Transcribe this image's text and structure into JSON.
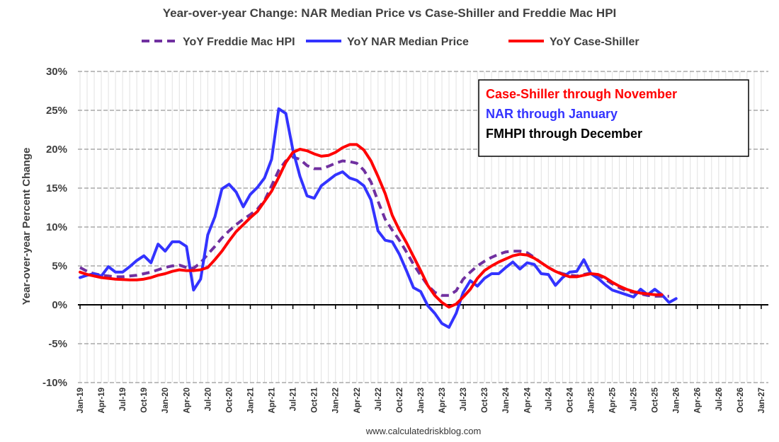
{
  "chart_data": {
    "type": "line",
    "title": "Year-over-year Change: NAR Median Price vs Case-Shiller and Freddie Mac HPI",
    "ylabel": "Year-over-year Percent Change",
    "xlabel": "",
    "ylim": [
      -10,
      30
    ],
    "y_ticks": [
      "-10%",
      "-5%",
      "0%",
      "5%",
      "10%",
      "15%",
      "20%",
      "25%",
      "30%"
    ],
    "y_tick_values": [
      -10,
      -5,
      0,
      5,
      10,
      15,
      20,
      25,
      30
    ],
    "x_start": "Jan-19",
    "x_ticks": [
      "Jan-19",
      "Apr-19",
      "Jul-19",
      "Oct-19",
      "Jan-20",
      "Apr-20",
      "Jul-20",
      "Oct-20",
      "Jan-21",
      "Apr-21",
      "Jul-21",
      "Oct-21",
      "Jan-22",
      "Apr-22",
      "Jul-22",
      "Oct-22",
      "Jan-23",
      "Apr-23",
      "Jul-23",
      "Oct-23",
      "Jan-24",
      "Apr-24",
      "Jul-24",
      "Oct-24",
      "Jan-25",
      "Apr-25",
      "Jul-25",
      "Oct-25",
      "Jan-26",
      "Apr-26",
      "Jul-26",
      "Oct-26",
      "Jan-27"
    ],
    "x_months_total": 96,
    "grid": true,
    "legend_position": "top",
    "series": [
      {
        "name": "YoY Freddie Mac HPI",
        "color": "#7030a0",
        "style": "dashed",
        "values": [
          4.8,
          4.3,
          4.0,
          3.8,
          3.7,
          3.6,
          3.6,
          3.7,
          3.8,
          4.0,
          4.2,
          4.5,
          4.8,
          5.0,
          5.1,
          4.8,
          4.7,
          5.4,
          6.5,
          7.5,
          8.6,
          9.5,
          10.3,
          11.0,
          11.6,
          12.3,
          13.4,
          15.3,
          17.3,
          18.5,
          19.0,
          18.7,
          17.9,
          17.5,
          17.5,
          17.8,
          18.2,
          18.5,
          18.4,
          18.2,
          17.3,
          15.8,
          13.3,
          11.0,
          9.6,
          8.3,
          6.8,
          5.2,
          3.8,
          2.5,
          1.6,
          1.2,
          1.2,
          1.8,
          3.3,
          4.2,
          5.0,
          5.6,
          6.1,
          6.5,
          6.8,
          6.9,
          6.9,
          6.7,
          6.1,
          5.4,
          4.8,
          4.3,
          4.0,
          3.8,
          3.7,
          3.9,
          4.1,
          3.8,
          3.3,
          2.7,
          2.2,
          1.8,
          1.6,
          1.4,
          1.2,
          1.1,
          1.1,
          1.1
        ]
      },
      {
        "name": "YoY NAR Median Price",
        "color": "#3333ff",
        "style": "solid",
        "values": [
          3.5,
          3.8,
          4.0,
          3.7,
          4.9,
          4.2,
          4.2,
          4.9,
          5.7,
          6.3,
          5.4,
          7.8,
          6.9,
          8.1,
          8.1,
          7.5,
          1.9,
          3.3,
          9.0,
          11.3,
          14.9,
          15.5,
          14.5,
          12.6,
          14.2,
          15.1,
          16.3,
          18.7,
          25.2,
          24.6,
          19.9,
          16.5,
          14.0,
          13.7,
          15.3,
          16.0,
          16.7,
          17.1,
          16.3,
          16.0,
          15.3,
          13.5,
          9.5,
          8.3,
          8.1,
          6.5,
          4.4,
          2.2,
          1.7,
          -0.1,
          -1.1,
          -2.4,
          -2.9,
          -1.1,
          1.6,
          3.1,
          2.4,
          3.4,
          4.0,
          4.0,
          4.8,
          5.5,
          4.6,
          5.4,
          5.2,
          4.0,
          3.9,
          2.5,
          3.5,
          4.2,
          4.3,
          5.8,
          4.0,
          3.4,
          2.6,
          1.9,
          1.6,
          1.3,
          1.0,
          2.0,
          1.3,
          2.0,
          1.3,
          0.3,
          0.8
        ]
      },
      {
        "name": "YoY Case-Shiller",
        "color": "#ff0000",
        "style": "solid",
        "values": [
          4.2,
          3.9,
          3.7,
          3.5,
          3.4,
          3.3,
          3.25,
          3.2,
          3.2,
          3.3,
          3.5,
          3.8,
          4.0,
          4.3,
          4.5,
          4.4,
          4.4,
          4.5,
          4.8,
          5.8,
          6.9,
          8.2,
          9.4,
          10.3,
          11.2,
          12.0,
          13.3,
          14.6,
          16.4,
          18.3,
          19.6,
          20.0,
          19.8,
          19.4,
          19.1,
          19.2,
          19.6,
          20.2,
          20.6,
          20.6,
          19.9,
          18.5,
          16.5,
          14.3,
          11.5,
          9.6,
          8.0,
          6.2,
          4.4,
          2.5,
          1.2,
          0.3,
          -0.3,
          0.1,
          1.0,
          2.0,
          3.4,
          4.4,
          5.0,
          5.5,
          5.9,
          6.3,
          6.5,
          6.4,
          6.0,
          5.4,
          4.8,
          4.3,
          3.9,
          3.6,
          3.6,
          3.8,
          4.0,
          3.9,
          3.5,
          2.9,
          2.4,
          2.0,
          1.7,
          1.5,
          1.4,
          1.3,
          1.3
        ]
      }
    ],
    "annotations": [
      {
        "text": "Case-Shiller through November",
        "color": "#ff0000"
      },
      {
        "text": "NAR through January",
        "color": "#3333ff"
      },
      {
        "text": "FMHPI through December",
        "color": "#000000"
      }
    ],
    "source": "www.calculatedriskblog.com"
  }
}
